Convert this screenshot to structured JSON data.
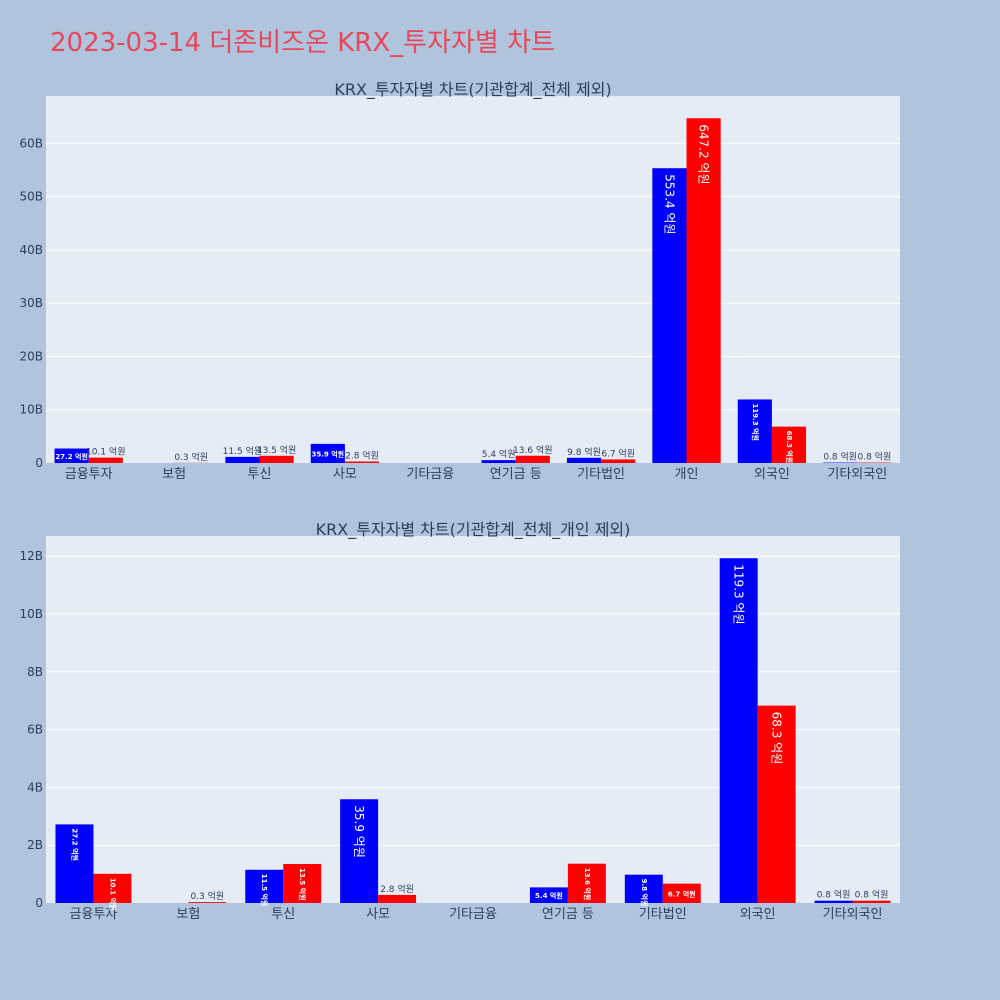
{
  "page": {
    "title": "2023-03-14 더존비즈온 KRX_투자자별 차트"
  },
  "colors": {
    "background": "#b0c4de",
    "plot_bg": "#e5ecf6",
    "series_1": "#0000ff",
    "series_2": "#ff0000",
    "title": "#e8475a"
  },
  "chart_data": [
    {
      "type": "bar",
      "title": "KRX_투자자별 차트(기관합계_전체 제외)",
      "xlabel": "",
      "ylabel": "",
      "categories": [
        "금융투자",
        "보험",
        "투신",
        "사모",
        "기타금융",
        "연기금 등",
        "기타법인",
        "개인",
        "외국인",
        "기타외국인"
      ],
      "y_ticks": [
        {
          "value": 0,
          "label": "0"
        },
        {
          "value": 10000000000,
          "label": "10B"
        },
        {
          "value": 20000000000,
          "label": "20B"
        },
        {
          "value": 30000000000,
          "label": "30B"
        },
        {
          "value": 40000000000,
          "label": "40B"
        },
        {
          "value": 50000000000,
          "label": "50B"
        },
        {
          "value": 60000000000,
          "label": "60B"
        }
      ],
      "ylim": [
        0,
        68900000000
      ],
      "series": [
        {
          "color": "#0000ff",
          "values": [
            2720000000,
            0,
            1150000000,
            3590000000,
            0,
            540000000,
            980000000,
            55340000000,
            11930000000,
            80000000
          ],
          "labels": [
            "27.2 억원",
            "",
            "11.5 억원",
            "35.9 억원",
            "",
            "5.4 억원",
            "9.8 억원",
            "553.4 억원",
            "119.3 억원",
            "0.8 억원"
          ]
        },
        {
          "color": "#ff0000",
          "values": [
            1010000000,
            30000000,
            1350000000,
            280000000,
            0,
            1360000000,
            670000000,
            64720000000,
            6830000000,
            80000000
          ],
          "labels": [
            "10.1 억원",
            "0.3 억원",
            "13.5 억원",
            "2.8 억원",
            "",
            "13.6 억원",
            "6.7 억원",
            "647.2 억원",
            "68.3 억원",
            "0.8 억원"
          ]
        }
      ]
    },
    {
      "type": "bar",
      "title": "KRX_투자자별 차트(기관합계_전체_개인 제외)",
      "xlabel": "",
      "ylabel": "",
      "categories": [
        "금융투자",
        "보험",
        "투신",
        "사모",
        "기타금융",
        "연기금 등",
        "기타법인",
        "외국인",
        "기타외국인"
      ],
      "y_ticks": [
        {
          "value": 0,
          "label": "0"
        },
        {
          "value": 2000000000,
          "label": "2B"
        },
        {
          "value": 4000000000,
          "label": "4B"
        },
        {
          "value": 6000000000,
          "label": "6B"
        },
        {
          "value": 8000000000,
          "label": "8B"
        },
        {
          "value": 10000000000,
          "label": "10B"
        },
        {
          "value": 12000000000,
          "label": "12B"
        }
      ],
      "ylim": [
        0,
        12700000000
      ],
      "series": [
        {
          "color": "#0000ff",
          "values": [
            2720000000,
            0,
            1150000000,
            3590000000,
            0,
            540000000,
            980000000,
            11930000000,
            80000000
          ],
          "labels": [
            "27.2 억원",
            "",
            "11.5 억원",
            "35.9 억원",
            "",
            "5.4 억원",
            "9.8 억원",
            "119.3 억원",
            "0.8 억원"
          ]
        },
        {
          "color": "#ff0000",
          "values": [
            1010000000,
            30000000,
            1350000000,
            280000000,
            0,
            1360000000,
            670000000,
            6830000000,
            80000000
          ],
          "labels": [
            "10.1 억원",
            "0.3 억원",
            "13.5 억원",
            "2.8 억원",
            "",
            "13.6 억원",
            "6.7 억원",
            "68.3 억원",
            "0.8 억원"
          ]
        }
      ]
    }
  ]
}
